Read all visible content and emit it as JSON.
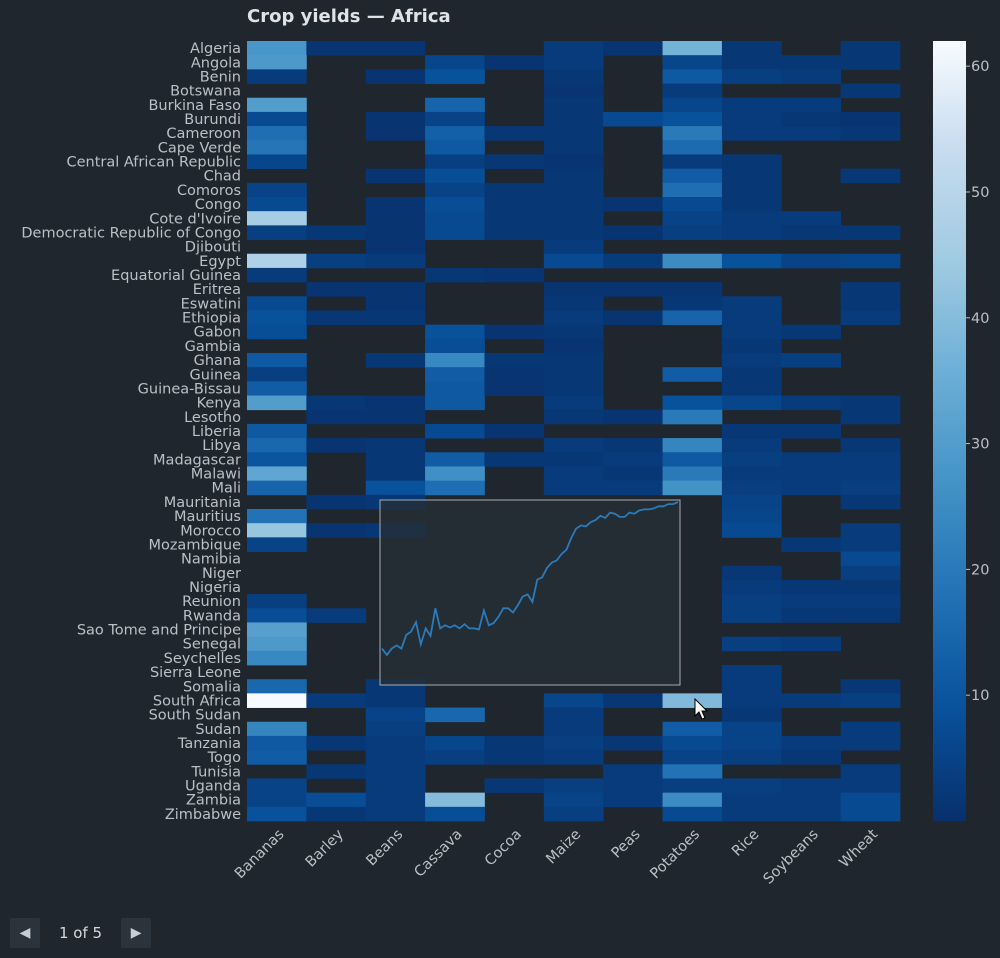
{
  "chart_data": {
    "type": "heatmap",
    "title": "Crop yields — Africa",
    "rows": [
      "Algeria",
      "Angola",
      "Benin",
      "Botswana",
      "Burkina Faso",
      "Burundi",
      "Cameroon",
      "Cape Verde",
      "Central African Republic",
      "Chad",
      "Comoros",
      "Congo",
      "Cote d'Ivoire",
      "Democratic Republic of Congo",
      "Djibouti",
      "Egypt",
      "Equatorial Guinea",
      "Eritrea",
      "Eswatini",
      "Ethiopia",
      "Gabon",
      "Gambia",
      "Ghana",
      "Guinea",
      "Guinea-Bissau",
      "Kenya",
      "Lesotho",
      "Liberia",
      "Libya",
      "Madagascar",
      "Malawi",
      "Mali",
      "Mauritania",
      "Mauritius",
      "Morocco",
      "Mozambique",
      "Namibia",
      "Niger",
      "Nigeria",
      "Reunion",
      "Rwanda",
      "Sao Tome and Principe",
      "Senegal",
      "Seychelles",
      "Sierra Leone",
      "Somalia",
      "South Africa",
      "South Sudan",
      "Sudan",
      "Tanzania",
      "Togo",
      "Tunisia",
      "Uganda",
      "Zambia",
      "Zimbabwe"
    ],
    "columns": [
      "Bananas",
      "Barley",
      "Beans",
      "Cassava",
      "Cocoa",
      "Maize",
      "Peas",
      "Potatoes",
      "Rice",
      "Soybeans",
      "Wheat"
    ],
    "values": [
      [
        28,
        1,
        1,
        null,
        null,
        3,
        1,
        37,
        2,
        null,
        2
      ],
      [
        29,
        null,
        null,
        6,
        1,
        3,
        null,
        6,
        2,
        2,
        2
      ],
      [
        3,
        null,
        1,
        9,
        null,
        2,
        null,
        11,
        4,
        3,
        null
      ],
      [
        null,
        null,
        null,
        null,
        null,
        1,
        null,
        3,
        null,
        null,
        2
      ],
      [
        30,
        null,
        null,
        14,
        null,
        2,
        null,
        6,
        3,
        3,
        null
      ],
      [
        7,
        null,
        1,
        5,
        null,
        2,
        7,
        9,
        3,
        2,
        1
      ],
      [
        17,
        null,
        1,
        13,
        2,
        2,
        null,
        20,
        3,
        3,
        2
      ],
      [
        19,
        null,
        null,
        11,
        null,
        2,
        null,
        16,
        null,
        null,
        null
      ],
      [
        6,
        null,
        null,
        4,
        2,
        1,
        null,
        3,
        2,
        null,
        null
      ],
      [
        null,
        null,
        1,
        8,
        null,
        2,
        null,
        12,
        2,
        null,
        2
      ],
      [
        5,
        null,
        null,
        5,
        2,
        2,
        null,
        17,
        2,
        null,
        null
      ],
      [
        7,
        null,
        1,
        8,
        2,
        2,
        1,
        7,
        2,
        null,
        null
      ],
      [
        46,
        null,
        1,
        7,
        2,
        2,
        null,
        5,
        3,
        3,
        null
      ],
      [
        4,
        2,
        1,
        7,
        2,
        2,
        1,
        4,
        3,
        2,
        2
      ],
      [
        null,
        null,
        1,
        null,
        null,
        3,
        null,
        null,
        null,
        null,
        null
      ],
      [
        48,
        4,
        3,
        null,
        null,
        7,
        3,
        25,
        9,
        5,
        6
      ],
      [
        3,
        null,
        null,
        2,
        1,
        null,
        null,
        null,
        null,
        null,
        null
      ],
      [
        null,
        1,
        1,
        null,
        null,
        1,
        1,
        1,
        null,
        null,
        2
      ],
      [
        7,
        null,
        1,
        null,
        null,
        2,
        null,
        2,
        3,
        null,
        2
      ],
      [
        9,
        2,
        2,
        null,
        null,
        3,
        1,
        14,
        3,
        null,
        3
      ],
      [
        8,
        null,
        null,
        9,
        1,
        2,
        null,
        null,
        3,
        2,
        null
      ],
      [
        null,
        null,
        null,
        8,
        null,
        1,
        null,
        null,
        2,
        null,
        null
      ],
      [
        11,
        null,
        2,
        24,
        2,
        2,
        null,
        null,
        3,
        4,
        null
      ],
      [
        4,
        null,
        null,
        12,
        1,
        2,
        null,
        12,
        2,
        null,
        null
      ],
      [
        12,
        null,
        null,
        11,
        1,
        2,
        null,
        null,
        2,
        null,
        null
      ],
      [
        30,
        2,
        1,
        11,
        null,
        3,
        null,
        9,
        6,
        3,
        2
      ],
      [
        null,
        1,
        1,
        null,
        null,
        2,
        1,
        20,
        null,
        null,
        2
      ],
      [
        11,
        null,
        null,
        7,
        1,
        null,
        null,
        null,
        2,
        2,
        null
      ],
      [
        15,
        1,
        2,
        null,
        null,
        3,
        2,
        23,
        3,
        null,
        2
      ],
      [
        10,
        null,
        2,
        12,
        2,
        2,
        3,
        11,
        4,
        3,
        3
      ],
      [
        33,
        null,
        2,
        26,
        null,
        3,
        2,
        20,
        3,
        3,
        3
      ],
      [
        14,
        null,
        9,
        17,
        null,
        3,
        3,
        27,
        4,
        3,
        4
      ],
      [
        null,
        1,
        2,
        null,
        null,
        null,
        null,
        null,
        5,
        null,
        2
      ],
      [
        18,
        null,
        null,
        null,
        null,
        null,
        null,
        null,
        6,
        null,
        null
      ],
      [
        43,
        1,
        2,
        null,
        null,
        null,
        null,
        null,
        7,
        null,
        3
      ],
      [
        5,
        null,
        null,
        null,
        null,
        null,
        null,
        null,
        null,
        2,
        3
      ],
      [
        null,
        null,
        null,
        null,
        null,
        null,
        null,
        null,
        null,
        null,
        7
      ],
      [
        null,
        null,
        null,
        null,
        null,
        null,
        null,
        null,
        2,
        null,
        4
      ],
      [
        null,
        null,
        null,
        null,
        null,
        null,
        null,
        null,
        3,
        2,
        2
      ],
      [
        4,
        null,
        null,
        null,
        null,
        null,
        null,
        null,
        4,
        3,
        3
      ],
      [
        8,
        3,
        null,
        null,
        null,
        null,
        null,
        null,
        4,
        2,
        2
      ],
      [
        31,
        null,
        null,
        null,
        null,
        null,
        null,
        null,
        null,
        null,
        null
      ],
      [
        29,
        null,
        null,
        null,
        null,
        null,
        null,
        null,
        4,
        3,
        null
      ],
      [
        24,
        null,
        null,
        null,
        null,
        null,
        null,
        null,
        null,
        null,
        null
      ],
      [
        null,
        null,
        null,
        null,
        null,
        null,
        null,
        null,
        3,
        null,
        null
      ],
      [
        15,
        null,
        2,
        null,
        null,
        null,
        null,
        null,
        3,
        null,
        2
      ],
      [
        62,
        3,
        2,
        null,
        null,
        6,
        2,
        39,
        3,
        3,
        4
      ],
      [
        null,
        null,
        5,
        15,
        null,
        3,
        null,
        null,
        2,
        null,
        null
      ],
      [
        23,
        null,
        4,
        null,
        null,
        3,
        null,
        12,
        5,
        null,
        3
      ],
      [
        11,
        2,
        3,
        6,
        2,
        4,
        2,
        7,
        5,
        3,
        3
      ],
      [
        12,
        null,
        3,
        4,
        2,
        3,
        null,
        5,
        4,
        2,
        null
      ],
      [
        null,
        2,
        3,
        null,
        null,
        null,
        3,
        18,
        null,
        null,
        3
      ],
      [
        5,
        null,
        3,
        null,
        2,
        4,
        3,
        4,
        4,
        3,
        3
      ],
      [
        5,
        8,
        3,
        40,
        null,
        5,
        3,
        25,
        3,
        3,
        7
      ],
      [
        9,
        2,
        3,
        8,
        null,
        4,
        null,
        7,
        3,
        3,
        7
      ]
    ],
    "vmin": 0,
    "vmax": 62,
    "colorbar_ticks": [
      10,
      20,
      30,
      40,
      50,
      60
    ],
    "colorscale": [
      "#08306b",
      "#08519c",
      "#2171b5",
      "#4292c6",
      "#6baed6",
      "#9ecae1",
      "#c6dbef",
      "#f7fbff"
    ],
    "inset": {
      "type": "line",
      "values": [
        5.2,
        4.6,
        5.2,
        5.5,
        5.2,
        6.5,
        6.8,
        7.7,
        5.6,
        7.1,
        6.4,
        9.0,
        7.1,
        7.4,
        7.2,
        7.4,
        7.1,
        7.5,
        7.1,
        7.1,
        7.0,
        8.8,
        7.4,
        7.6,
        8.2,
        9.0,
        9.0,
        8.6,
        9.3,
        10.1,
        10.3,
        9.6,
        11.7,
        11.9,
        12.8,
        13.3,
        13.5,
        14.1,
        14.5,
        15.6,
        16.5,
        16.8,
        16.7,
        17.1,
        17.3,
        17.7,
        17.5,
        18.0,
        17.9,
        17.6,
        17.6,
        18.0,
        17.9,
        18.2,
        18.3,
        18.3,
        18.4,
        18.6,
        18.6,
        18.8,
        18.8,
        19.0
      ]
    }
  },
  "pager": {
    "prev_label": "◀",
    "next_label": "▶",
    "page_label": "1 of 5"
  },
  "colors": {
    "background": "#1f262d",
    "text": "#c7cdd2",
    "inset_line": "#2b7bba",
    "inset_border": "#a6adb3"
  },
  "icons": {
    "prev": "triangle-left-icon",
    "next": "triangle-right-icon",
    "cursor": "mouse-pointer-icon"
  }
}
